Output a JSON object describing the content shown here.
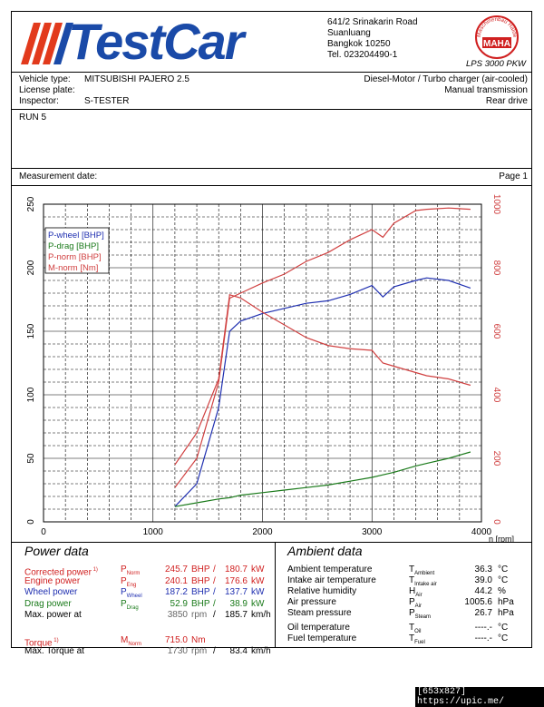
{
  "header": {
    "brand": "TestCar",
    "address": [
      "641/2 Srinakarin Road",
      "Suanluang",
      "Bangkok 10250",
      "Tel. 023204490-1"
    ],
    "maha_name": "MAHA",
    "maha_ring": "Maschinenbau Haldenwang",
    "model": "LPS 3000 PKW"
  },
  "info": {
    "vehicle_label": "Vehicle type:",
    "vehicle_value": "MITSUBISHI PAJERO 2.5",
    "plate_label": "License plate:",
    "inspector_label": "Inspector:",
    "inspector_value": "S-TESTER",
    "engine": "Diesel-Motor / Turbo charger (air-cooled)",
    "transmission": "Manual transmission",
    "drive": "Rear drive"
  },
  "run": "RUN 5",
  "measurement": {
    "label": "Measurement date:",
    "page": "Page 1"
  },
  "chart_data": {
    "type": "line",
    "x": [
      1200,
      1400,
      1600,
      1700,
      1800,
      2000,
      2200,
      2400,
      2600,
      2800,
      3000,
      3100,
      3200,
      3400,
      3500,
      3700,
      3900
    ],
    "xlabel": "n [rpm]",
    "xlim": [
      0,
      4000
    ],
    "x_ticks": [
      "0",
      "1000",
      "2000",
      "3000",
      "4000"
    ],
    "ylim_left": [
      0,
      250
    ],
    "y_ticks_left": [
      "0",
      "50",
      "100",
      "150",
      "200",
      "250"
    ],
    "ylim_right": [
      0,
      1000
    ],
    "y_ticks_right": [
      "0",
      "200",
      "400",
      "600",
      "800",
      "1000"
    ],
    "grid": true,
    "legend_position": "top-left",
    "series": [
      {
        "name": "P-wheel [BHP]",
        "color": "#1f2fb0",
        "axis": "left",
        "values": [
          12,
          30,
          90,
          150,
          158,
          164,
          168,
          172,
          174,
          179,
          186,
          177,
          185,
          190,
          192,
          190,
          184
        ]
      },
      {
        "name": "P-drag [BHP]",
        "color": "#1a7a1a",
        "axis": "left",
        "values": [
          12,
          15,
          18,
          19,
          21,
          23,
          25,
          27,
          29,
          32,
          35,
          37,
          39,
          44,
          46,
          50,
          55
        ]
      },
      {
        "name": "P-norm [BHP]",
        "color": "#d04040",
        "axis": "left",
        "values": [
          27,
          50,
          110,
          176,
          180,
          188,
          195,
          205,
          212,
          222,
          230,
          224,
          235,
          245,
          246,
          247,
          246
        ]
      },
      {
        "name": "M-norm [Nm]",
        "color": "#d04040",
        "axis": "right",
        "values": [
          180,
          280,
          450,
          715,
          705,
          660,
          620,
          580,
          555,
          545,
          540,
          500,
          490,
          470,
          460,
          450,
          430
        ]
      }
    ]
  },
  "power": {
    "title": "Power data",
    "rows": [
      {
        "label": "Corrected power",
        "sup": "1)",
        "sym": "P",
        "sub": "Norm",
        "v1": "245.7",
        "u1": "BHP",
        "v2": "180.7",
        "u2": "kW",
        "color": "#d02020"
      },
      {
        "label": "Engine power",
        "sup": "",
        "sym": "P",
        "sub": "Eng",
        "v1": "240.1",
        "u1": "BHP",
        "v2": "176.6",
        "u2": "kW",
        "color": "#d02020"
      },
      {
        "label": "Wheel power",
        "sup": "",
        "sym": "P",
        "sub": "Wheel",
        "v1": "187.2",
        "u1": "BHP",
        "v2": "137.7",
        "u2": "kW",
        "color": "#1f2fb0"
      },
      {
        "label": "Drag power",
        "sup": "",
        "sym": "P",
        "sub": "Drag",
        "v1": "52.9",
        "u1": "BHP",
        "v2": "38.9",
        "u2": "kW",
        "color": "#1a7a1a"
      }
    ],
    "max_power": {
      "label": "Max. power at",
      "rpm": "3850",
      "rpm_unit": "rpm",
      "sep": "/",
      "speed": "185.7",
      "speed_unit": "km/h"
    },
    "torque": {
      "label": "Torque",
      "sup": "1)",
      "sym": "M",
      "sub": "Norm",
      "value": "715.0",
      "unit": "Nm"
    },
    "max_torque": {
      "label": "Max. Torque at",
      "rpm": "1730",
      "rpm_unit": "rpm",
      "sep": "/",
      "speed": "83.4",
      "speed_unit": "km/h"
    }
  },
  "ambient": {
    "title": "Ambient data",
    "rows": [
      {
        "label": "Ambient temperature",
        "sym": "T",
        "sub": "Ambient",
        "value": "36.3",
        "unit": "°C"
      },
      {
        "label": "Intake air temperature",
        "sym": "T",
        "sub": "Intake air",
        "value": "39.0",
        "unit": "°C"
      },
      {
        "label": "Relative humidity",
        "sym": "H",
        "sub": "Air",
        "value": "44.2",
        "unit": "%"
      },
      {
        "label": "Air pressure",
        "sym": "P",
        "sub": "Air",
        "value": "1005.6",
        "unit": "hPa"
      },
      {
        "label": "Steam pressure",
        "sym": "P",
        "sub": "Steam",
        "value": "26.7",
        "unit": "hPa"
      },
      {
        "label": "Oil temperature",
        "sym": "T",
        "sub": "Oil",
        "value": "----.-",
        "unit": "°C"
      },
      {
        "label": "Fuel temperature",
        "sym": "T",
        "sub": "Fuel",
        "value": "----.-",
        "unit": "°C"
      }
    ]
  },
  "footer": "[653x827] https://upic.me/"
}
